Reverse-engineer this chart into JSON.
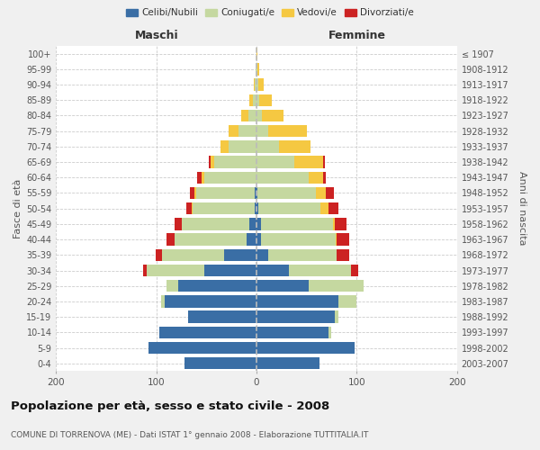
{
  "age_groups": [
    "0-4",
    "5-9",
    "10-14",
    "15-19",
    "20-24",
    "25-29",
    "30-34",
    "35-39",
    "40-44",
    "45-49",
    "50-54",
    "55-59",
    "60-64",
    "65-69",
    "70-74",
    "75-79",
    "80-84",
    "85-89",
    "90-94",
    "95-99",
    "100+"
  ],
  "birth_years": [
    "2003-2007",
    "1998-2002",
    "1993-1997",
    "1988-1992",
    "1983-1987",
    "1978-1982",
    "1973-1977",
    "1968-1972",
    "1963-1967",
    "1958-1962",
    "1953-1957",
    "1948-1952",
    "1943-1947",
    "1938-1942",
    "1933-1937",
    "1928-1932",
    "1923-1927",
    "1918-1922",
    "1913-1917",
    "1908-1912",
    "≤ 1907"
  ],
  "males": {
    "celibi": [
      72,
      108,
      97,
      68,
      92,
      78,
      52,
      32,
      10,
      7,
      2,
      2,
      0,
      0,
      0,
      0,
      0,
      0,
      0,
      0,
      0
    ],
    "coniugati": [
      0,
      0,
      0,
      0,
      3,
      12,
      58,
      62,
      72,
      68,
      62,
      58,
      52,
      42,
      28,
      18,
      8,
      4,
      2,
      1,
      0
    ],
    "vedovi": [
      0,
      0,
      0,
      0,
      0,
      0,
      0,
      0,
      0,
      0,
      1,
      2,
      3,
      4,
      8,
      10,
      7,
      3,
      1,
      0,
      0
    ],
    "divorziati": [
      0,
      0,
      0,
      0,
      0,
      0,
      3,
      7,
      8,
      7,
      5,
      5,
      4,
      2,
      0,
      0,
      0,
      0,
      0,
      0,
      0
    ]
  },
  "females": {
    "nubili": [
      63,
      98,
      72,
      78,
      82,
      52,
      32,
      12,
      4,
      4,
      2,
      1,
      0,
      0,
      0,
      0,
      0,
      0,
      0,
      0,
      0
    ],
    "coniugate": [
      0,
      0,
      2,
      4,
      18,
      55,
      62,
      68,
      75,
      72,
      62,
      58,
      52,
      38,
      22,
      12,
      5,
      3,
      2,
      1,
      0
    ],
    "vedove": [
      0,
      0,
      0,
      0,
      0,
      0,
      0,
      0,
      1,
      2,
      8,
      10,
      14,
      28,
      32,
      38,
      22,
      12,
      5,
      2,
      1
    ],
    "divorziate": [
      0,
      0,
      0,
      0,
      0,
      0,
      7,
      12,
      12,
      12,
      10,
      8,
      3,
      2,
      0,
      0,
      0,
      0,
      0,
      0,
      0
    ]
  },
  "colors": {
    "celibi": "#3a6ea5",
    "coniugati": "#c5d8a0",
    "vedovi": "#f5c842",
    "divorziati": "#cc2222"
  },
  "xlim": 200,
  "title": "Popolazione per età, sesso e stato civile - 2008",
  "subtitle": "COMUNE DI TORRENOVA (ME) - Dati ISTAT 1° gennaio 2008 - Elaborazione TUTTITALIA.IT",
  "ylabel": "Fasce di età",
  "ylabel2": "Anni di nascita",
  "xlabel_maschi": "Maschi",
  "xlabel_femmine": "Femmine",
  "legend_labels": [
    "Celibi/Nubili",
    "Coniugati/e",
    "Vedovi/e",
    "Divorziati/e"
  ],
  "bg_color": "#f0f0f0",
  "plot_bg": "#ffffff"
}
